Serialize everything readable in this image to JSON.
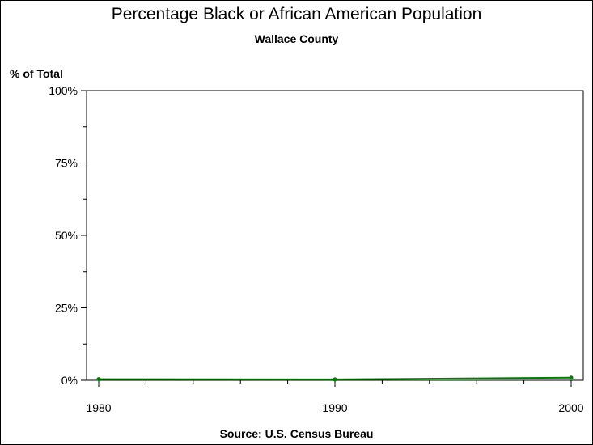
{
  "chart_data": {
    "type": "line",
    "title": "Percentage Black or African American Population",
    "subtitle": "Wallace County",
    "ylabel": "% of Total",
    "source": "Source: U.S. Census Bureau",
    "x": [
      1980,
      1990,
      2000
    ],
    "x_tick_labels": [
      "1980",
      "1990",
      "2000"
    ],
    "y_tick_labels": [
      "0%",
      "25%",
      "50%",
      "75%",
      "100%"
    ],
    "y_ticks": [
      0,
      25,
      50,
      75,
      100
    ],
    "xlim": [
      1980,
      2000
    ],
    "ylim": [
      0,
      100
    ],
    "series": [
      {
        "values": [
          0.4,
          0.3,
          0.9
        ],
        "color": "#008000"
      }
    ],
    "grid": false
  }
}
